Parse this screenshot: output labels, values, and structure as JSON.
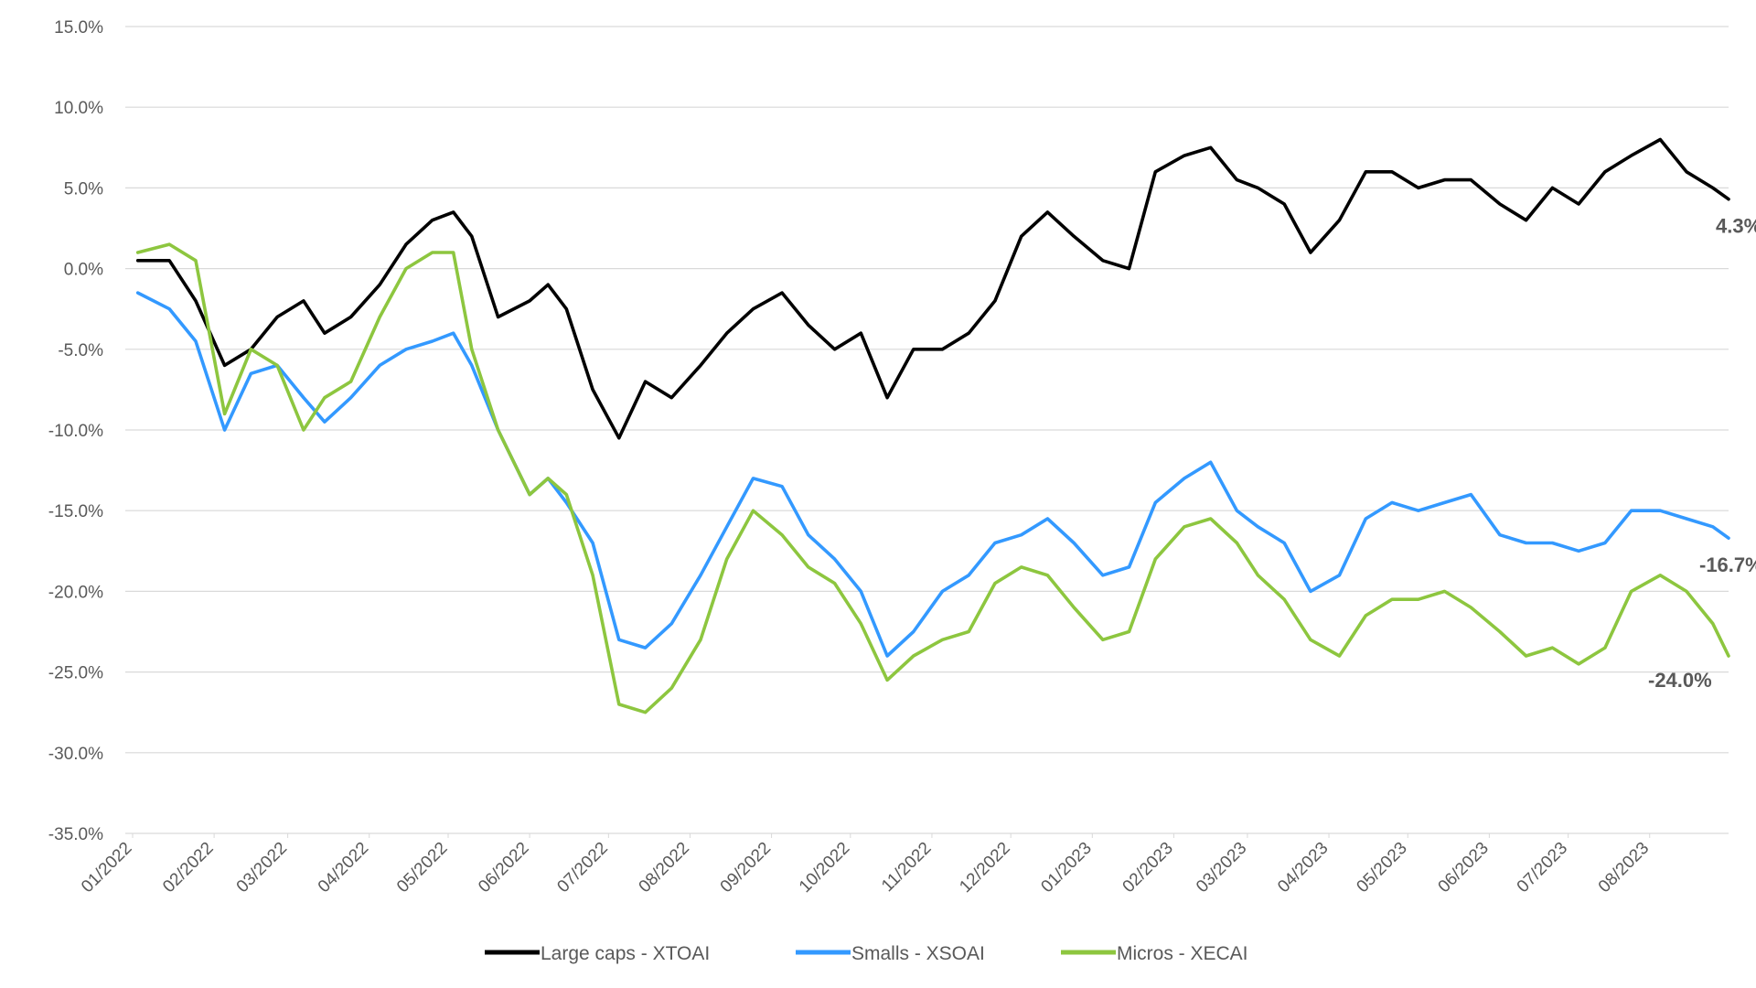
{
  "chart_data": {
    "type": "line",
    "title": "",
    "xlabel": "",
    "ylabel": "",
    "ylim": [
      -35,
      15
    ],
    "y_ticks": [
      "15.0%",
      "10.0%",
      "5.0%",
      "0.0%",
      "-5.0%",
      "-10.0%",
      "-15.0%",
      "-20.0%",
      "-25.0%",
      "-30.0%",
      "-35.0%"
    ],
    "x_ticks": [
      "01/2022",
      "02/2022",
      "03/2022",
      "04/2022",
      "05/2022",
      "06/2022",
      "07/2022",
      "08/2022",
      "09/2022",
      "10/2022",
      "11/2022",
      "12/2022",
      "01/2023",
      "02/2023",
      "03/2023",
      "04/2023",
      "05/2023",
      "06/2023",
      "07/2023",
      "08/2023"
    ],
    "grid": "horizontal",
    "legend_position": "bottom",
    "series": [
      {
        "name": "Large caps - XTOAI",
        "color": "#000000",
        "end_label": "4.3%",
        "x": [
          "2022-01-03",
          "2022-01-15",
          "2022-01-25",
          "2022-02-05",
          "2022-02-15",
          "2022-02-25",
          "2022-03-07",
          "2022-03-15",
          "2022-03-25",
          "2022-04-05",
          "2022-04-15",
          "2022-04-25",
          "2022-05-03",
          "2022-05-10",
          "2022-05-20",
          "2022-06-01",
          "2022-06-08",
          "2022-06-15",
          "2022-06-25",
          "2022-07-05",
          "2022-07-15",
          "2022-07-25",
          "2022-08-05",
          "2022-08-15",
          "2022-08-25",
          "2022-09-05",
          "2022-09-15",
          "2022-09-25",
          "2022-10-05",
          "2022-10-15",
          "2022-10-25",
          "2022-11-05",
          "2022-11-15",
          "2022-11-25",
          "2022-12-05",
          "2022-12-15",
          "2022-12-25",
          "2023-01-05",
          "2023-01-15",
          "2023-01-25",
          "2023-02-05",
          "2023-02-15",
          "2023-02-25",
          "2023-03-05",
          "2023-03-15",
          "2023-03-25",
          "2023-04-05",
          "2023-04-15",
          "2023-04-25",
          "2023-05-05",
          "2023-05-15",
          "2023-05-25",
          "2023-06-05",
          "2023-06-15",
          "2023-06-25",
          "2023-07-05",
          "2023-07-15",
          "2023-07-25",
          "2023-08-05",
          "2023-08-15",
          "2023-08-25",
          "2023-08-31"
        ],
        "y": [
          0.5,
          0.5,
          -2.0,
          -6.0,
          -5.0,
          -3.0,
          -2.0,
          -4.0,
          -3.0,
          -1.0,
          1.5,
          3.0,
          3.5,
          2.0,
          -3.0,
          -2.0,
          -1.0,
          -2.5,
          -7.5,
          -10.5,
          -7.0,
          -8.0,
          -6.0,
          -4.0,
          -2.5,
          -1.5,
          -3.5,
          -5.0,
          -4.0,
          -8.0,
          -5.0,
          -5.0,
          -4.0,
          -2.0,
          2.0,
          3.5,
          2.0,
          0.5,
          0.0,
          6.0,
          7.0,
          7.5,
          5.5,
          5.0,
          4.0,
          1.0,
          3.0,
          6.0,
          6.0,
          5.0,
          5.5,
          5.5,
          4.0,
          3.0,
          5.0,
          4.0,
          6.0,
          7.0,
          8.0,
          6.0,
          5.0,
          4.3
        ]
      },
      {
        "name": "Smalls - XSOAI",
        "color": "#3399FF",
        "end_label": "-16.7%",
        "x": [
          "2022-01-03",
          "2022-01-15",
          "2022-01-25",
          "2022-02-05",
          "2022-02-15",
          "2022-02-25",
          "2022-03-07",
          "2022-03-15",
          "2022-03-25",
          "2022-04-05",
          "2022-04-15",
          "2022-04-25",
          "2022-05-03",
          "2022-05-10",
          "2022-05-20",
          "2022-06-01",
          "2022-06-08",
          "2022-06-15",
          "2022-06-25",
          "2022-07-05",
          "2022-07-15",
          "2022-07-25",
          "2022-08-05",
          "2022-08-15",
          "2022-08-25",
          "2022-09-05",
          "2022-09-15",
          "2022-09-25",
          "2022-10-05",
          "2022-10-15",
          "2022-10-25",
          "2022-11-05",
          "2022-11-15",
          "2022-11-25",
          "2022-12-05",
          "2022-12-15",
          "2022-12-25",
          "2023-01-05",
          "2023-01-15",
          "2023-01-25",
          "2023-02-05",
          "2023-02-15",
          "2023-02-25",
          "2023-03-05",
          "2023-03-15",
          "2023-03-25",
          "2023-04-05",
          "2023-04-15",
          "2023-04-25",
          "2023-05-05",
          "2023-05-15",
          "2023-05-25",
          "2023-06-05",
          "2023-06-15",
          "2023-06-25",
          "2023-07-05",
          "2023-07-15",
          "2023-07-25",
          "2023-08-05",
          "2023-08-15",
          "2023-08-25",
          "2023-08-31"
        ],
        "y": [
          -1.5,
          -2.5,
          -4.5,
          -10.0,
          -6.5,
          -6.0,
          -8.0,
          -9.5,
          -8.0,
          -6.0,
          -5.0,
          -4.5,
          -4.0,
          -6.0,
          -10.0,
          -14.0,
          -13.0,
          -14.5,
          -17.0,
          -23.0,
          -23.5,
          -22.0,
          -19.0,
          -16.0,
          -13.0,
          -13.5,
          -16.5,
          -18.0,
          -20.0,
          -24.0,
          -22.5,
          -20.0,
          -19.0,
          -17.0,
          -16.5,
          -15.5,
          -17.0,
          -19.0,
          -18.5,
          -14.5,
          -13.0,
          -12.0,
          -15.0,
          -16.0,
          -17.0,
          -20.0,
          -19.0,
          -15.5,
          -14.5,
          -15.0,
          -14.5,
          -14.0,
          -16.5,
          -17.0,
          -17.0,
          -17.5,
          -17.0,
          -15.0,
          -15.0,
          -15.5,
          -16.0,
          -16.7
        ]
      },
      {
        "name": "Micros - XECAI",
        "color": "#8DC63F",
        "end_label": "-24.0%",
        "x": [
          "2022-01-03",
          "2022-01-15",
          "2022-01-25",
          "2022-02-05",
          "2022-02-15",
          "2022-02-25",
          "2022-03-07",
          "2022-03-15",
          "2022-03-25",
          "2022-04-05",
          "2022-04-15",
          "2022-04-25",
          "2022-05-03",
          "2022-05-10",
          "2022-05-20",
          "2022-06-01",
          "2022-06-08",
          "2022-06-15",
          "2022-06-25",
          "2022-07-05",
          "2022-07-15",
          "2022-07-25",
          "2022-08-05",
          "2022-08-15",
          "2022-08-25",
          "2022-09-05",
          "2022-09-15",
          "2022-09-25",
          "2022-10-05",
          "2022-10-15",
          "2022-10-25",
          "2022-11-05",
          "2022-11-15",
          "2022-11-25",
          "2022-12-05",
          "2022-12-15",
          "2022-12-25",
          "2023-01-05",
          "2023-01-15",
          "2023-01-25",
          "2023-02-05",
          "2023-02-15",
          "2023-02-25",
          "2023-03-05",
          "2023-03-15",
          "2023-03-25",
          "2023-04-05",
          "2023-04-15",
          "2023-04-25",
          "2023-05-05",
          "2023-05-15",
          "2023-05-25",
          "2023-06-05",
          "2023-06-15",
          "2023-06-25",
          "2023-07-05",
          "2023-07-15",
          "2023-07-25",
          "2023-08-05",
          "2023-08-15",
          "2023-08-25",
          "2023-08-31"
        ],
        "y": [
          1.0,
          1.5,
          0.5,
          -9.0,
          -5.0,
          -6.0,
          -10.0,
          -8.0,
          -7.0,
          -3.0,
          0.0,
          1.0,
          1.0,
          -5.0,
          -10.0,
          -14.0,
          -13.0,
          -14.0,
          -19.0,
          -27.0,
          -27.5,
          -26.0,
          -23.0,
          -18.0,
          -15.0,
          -16.5,
          -18.5,
          -19.5,
          -22.0,
          -25.5,
          -24.0,
          -23.0,
          -22.5,
          -19.5,
          -18.5,
          -19.0,
          -21.0,
          -23.0,
          -22.5,
          -18.0,
          -16.0,
          -15.5,
          -17.0,
          -19.0,
          -20.5,
          -23.0,
          -24.0,
          -21.5,
          -20.5,
          -20.5,
          -20.0,
          -21.0,
          -22.5,
          -24.0,
          -23.5,
          -24.5,
          -23.5,
          -20.0,
          -19.0,
          -20.0,
          -22.0,
          -24.0
        ]
      }
    ]
  }
}
